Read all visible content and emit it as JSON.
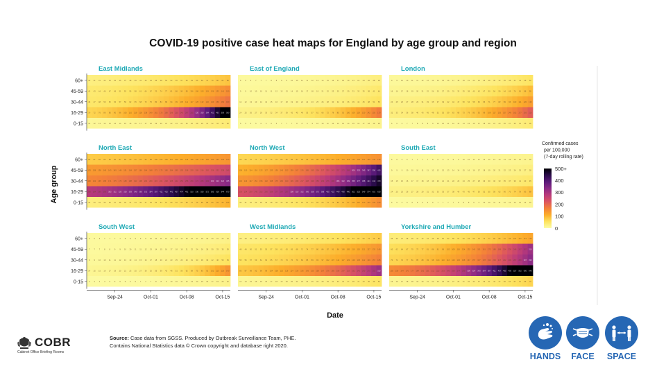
{
  "chart_data": {
    "type": "heatmap",
    "title": "COVID-19 positive case heat maps for England by age group and region",
    "xlabel": "Date",
    "ylabel": "Age group",
    "age_groups": [
      "60+",
      "45-59",
      "30-44",
      "16-29",
      "0-15"
    ],
    "x_ticks": [
      "Sep-24",
      "Oct-01",
      "Oct-08",
      "Oct-15"
    ],
    "days": 28,
    "colorscale": {
      "title_lines": [
        "Confirmed cases",
        "per 100,000",
        "(7-day rolling rate)"
      ],
      "ticks": [
        "500+",
        "400",
        "300",
        "200",
        "100",
        "0"
      ],
      "tick_values": [
        500,
        400,
        300,
        200,
        100,
        0
      ],
      "max": 500,
      "stops": [
        "#fcfca6",
        "#fde35f",
        "#fcae2b",
        "#f38039",
        "#dc5560",
        "#b93a7b",
        "#8a2a85",
        "#5a1a79",
        "#2a0c4a",
        "#000004"
      ]
    },
    "regions": [
      {
        "name": "East Midlands",
        "start": [
          30,
          42,
          46,
          70,
          12
        ],
        "end": [
          88,
          150,
          180,
          560,
          38
        ]
      },
      {
        "name": "East of England",
        "start": [
          6,
          9,
          12,
          24,
          5
        ],
        "end": [
          30,
          44,
          55,
          170,
          20
        ]
      },
      {
        "name": "London",
        "start": [
          9,
          16,
          24,
          32,
          6
        ],
        "end": [
          52,
          95,
          130,
          210,
          38
        ]
      },
      {
        "name": "North East",
        "start": [
          80,
          135,
          160,
          280,
          32
        ],
        "end": [
          140,
          245,
          335,
          670,
          105
        ]
      },
      {
        "name": "North West",
        "start": [
          68,
          108,
          140,
          230,
          30
        ],
        "end": [
          145,
          415,
          470,
          630,
          150
        ]
      },
      {
        "name": "South East",
        "start": [
          6,
          9,
          15,
          24,
          5
        ],
        "end": [
          18,
          28,
          45,
          88,
          15
        ]
      },
      {
        "name": "South West",
        "start": [
          6,
          7,
          9,
          14,
          4
        ],
        "end": [
          24,
          38,
          54,
          140,
          22
        ]
      },
      {
        "name": "West Midlands",
        "start": [
          28,
          48,
          55,
          85,
          14
        ],
        "end": [
          80,
          140,
          165,
          310,
          52
        ]
      },
      {
        "name": "Yorkshire and Humber",
        "start": [
          35,
          60,
          70,
          155,
          16
        ],
        "end": [
          120,
          310,
          330,
          640,
          70
        ]
      }
    ]
  },
  "source": {
    "label": "Source:",
    "line1": "Case data from SGSS. Produced by Outbreak Surveillance Team, PHE.",
    "line2": "Contains National Statistics data © Crown copyright and database right 2020."
  },
  "logo": {
    "word": "COBR",
    "subtitle": "Cabinet Office Briefing Rooms"
  },
  "campaign": [
    {
      "label": "HANDS",
      "icon": "hands-washing-icon"
    },
    {
      "label": "FACE",
      "icon": "face-mask-icon"
    },
    {
      "label": "SPACE",
      "icon": "social-distance-icon"
    }
  ],
  "colors": {
    "region_title": "#1fa9b5",
    "campaign_blue": "#2667b4"
  }
}
